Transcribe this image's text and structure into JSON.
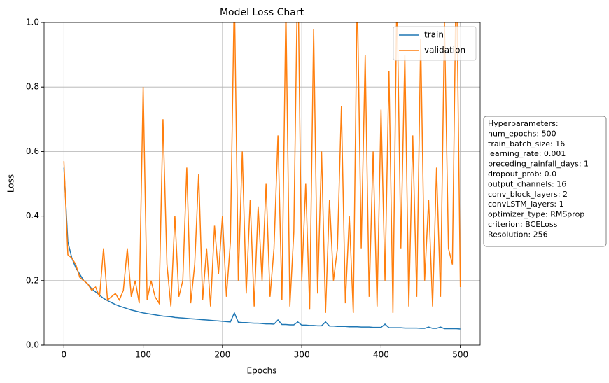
{
  "chart_data": {
    "type": "line",
    "title": "Model Loss Chart",
    "xlabel": "Epochs",
    "ylabel": "Loss",
    "x": [
      0,
      5,
      10,
      15,
      20,
      25,
      30,
      35,
      40,
      45,
      50,
      55,
      60,
      65,
      70,
      75,
      80,
      85,
      90,
      95,
      100,
      105,
      110,
      115,
      120,
      125,
      130,
      135,
      140,
      145,
      150,
      155,
      160,
      165,
      170,
      175,
      180,
      185,
      190,
      195,
      200,
      205,
      210,
      215,
      220,
      225,
      230,
      235,
      240,
      245,
      250,
      255,
      260,
      265,
      270,
      275,
      280,
      285,
      290,
      295,
      300,
      305,
      310,
      315,
      320,
      325,
      330,
      335,
      340,
      345,
      350,
      355,
      360,
      365,
      370,
      375,
      380,
      385,
      390,
      395,
      400,
      405,
      410,
      415,
      420,
      425,
      430,
      435,
      440,
      445,
      450,
      455,
      460,
      465,
      470,
      475,
      480,
      485,
      490,
      495,
      500
    ],
    "series": [
      {
        "name": "train",
        "color": "#1f77b4",
        "values": [
          0.55,
          0.32,
          0.27,
          0.24,
          0.22,
          0.2,
          0.19,
          0.175,
          0.165,
          0.155,
          0.145,
          0.138,
          0.132,
          0.126,
          0.121,
          0.117,
          0.113,
          0.109,
          0.106,
          0.103,
          0.1,
          0.098,
          0.096,
          0.094,
          0.092,
          0.09,
          0.089,
          0.088,
          0.086,
          0.085,
          0.084,
          0.083,
          0.082,
          0.081,
          0.08,
          0.079,
          0.078,
          0.077,
          0.076,
          0.075,
          0.074,
          0.073,
          0.072,
          0.1,
          0.071,
          0.07,
          0.07,
          0.069,
          0.068,
          0.068,
          0.067,
          0.066,
          0.066,
          0.065,
          0.078,
          0.064,
          0.064,
          0.063,
          0.063,
          0.072,
          0.062,
          0.062,
          0.061,
          0.061,
          0.06,
          0.06,
          0.072,
          0.059,
          0.059,
          0.058,
          0.058,
          0.058,
          0.057,
          0.057,
          0.057,
          0.056,
          0.056,
          0.056,
          0.055,
          0.055,
          0.055,
          0.065,
          0.054,
          0.054,
          0.054,
          0.054,
          0.053,
          0.053,
          0.053,
          0.053,
          0.052,
          0.052,
          0.056,
          0.052,
          0.052,
          0.056,
          0.051,
          0.051,
          0.051,
          0.051,
          0.05
        ]
      },
      {
        "name": "validation",
        "color": "#ff7f0e",
        "values": [
          0.57,
          0.28,
          0.27,
          0.25,
          0.21,
          0.2,
          0.19,
          0.17,
          0.18,
          0.15,
          0.3,
          0.14,
          0.15,
          0.16,
          0.14,
          0.17,
          0.3,
          0.15,
          0.2,
          0.13,
          0.8,
          0.14,
          0.2,
          0.15,
          0.13,
          0.7,
          0.25,
          0.12,
          0.4,
          0.15,
          0.2,
          0.55,
          0.13,
          0.25,
          0.53,
          0.14,
          0.3,
          0.12,
          0.37,
          0.22,
          0.4,
          0.15,
          0.32,
          1.1,
          0.2,
          0.6,
          0.16,
          0.45,
          0.12,
          0.43,
          0.2,
          0.5,
          0.15,
          0.3,
          0.65,
          0.14,
          1.05,
          0.12,
          0.35,
          1.2,
          0.2,
          0.5,
          0.11,
          0.98,
          0.16,
          0.6,
          0.1,
          0.45,
          0.2,
          0.3,
          0.74,
          0.13,
          0.4,
          0.1,
          1.1,
          0.3,
          0.9,
          0.15,
          0.6,
          0.12,
          0.73,
          0.2,
          0.85,
          0.1,
          1.1,
          0.3,
          0.9,
          0.12,
          0.65,
          0.15,
          0.95,
          0.2,
          0.45,
          0.12,
          0.55,
          0.15,
          1.0,
          0.3,
          0.25,
          1.2,
          0.18
        ]
      }
    ],
    "xlim": [
      -25,
      525
    ],
    "xticks": [
      0,
      100,
      200,
      300,
      400,
      500
    ],
    "ylim": [
      0,
      1
    ],
    "yticks": [
      {
        "value": 0,
        "label": "0.0"
      },
      0.2,
      0.4,
      0.6,
      0.8,
      {
        "value": 1,
        "label": "1.0"
      }
    ],
    "grid": true,
    "legend": "upper right",
    "annotation": [
      "Hyperparameters:",
      "num_epochs: 500",
      "train_batch_size: 16",
      "learning_rate: 0.001",
      "preceding_rainfall_days: 1",
      "dropout_prob: 0.0",
      "output_channels: 16",
      "conv_block_layers: 2",
      "convLSTM_layers: 1",
      "optimizer_type: RMSprop",
      "criterion: BCELoss",
      "Resolution: 256"
    ]
  }
}
